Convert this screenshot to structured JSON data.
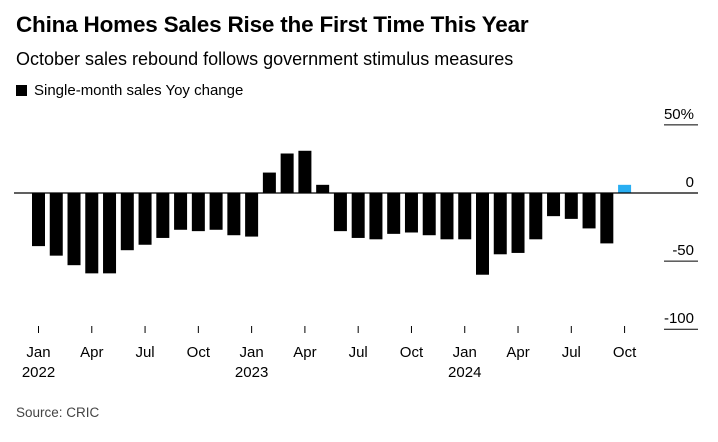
{
  "title": "China Homes Sales Rise the First Time This Year",
  "subtitle": "October sales rebound follows government stimulus measures",
  "legend_label": "Single-month sales Yoy change",
  "source": "Source: CRIC",
  "colors": {
    "bar": "#000000",
    "highlight": "#29aef2",
    "axis": "#000000",
    "tick_text": "#000000"
  },
  "chart_data": {
    "type": "bar",
    "title": "China Homes Sales Rise the First Time This Year",
    "subtitle": "October sales rebound follows government stimulus measures",
    "ylim": [
      -100,
      50
    ],
    "yticks": [
      50,
      0,
      -50,
      -100
    ],
    "ytick_labels": [
      "50%",
      "0",
      "-50",
      "-100"
    ],
    "x_tick_labels": [
      {
        "index": 0,
        "label": "Jan",
        "year": "2022"
      },
      {
        "index": 3,
        "label": "Apr",
        "year": ""
      },
      {
        "index": 6,
        "label": "Jul",
        "year": ""
      },
      {
        "index": 9,
        "label": "Oct",
        "year": ""
      },
      {
        "index": 12,
        "label": "Jan",
        "year": "2023"
      },
      {
        "index": 15,
        "label": "Apr",
        "year": ""
      },
      {
        "index": 18,
        "label": "Jul",
        "year": ""
      },
      {
        "index": 21,
        "label": "Oct",
        "year": ""
      },
      {
        "index": 24,
        "label": "Jan",
        "year": "2024"
      },
      {
        "index": 27,
        "label": "Apr",
        "year": ""
      },
      {
        "index": 30,
        "label": "Jul",
        "year": ""
      },
      {
        "index": 33,
        "label": "Oct",
        "year": ""
      }
    ],
    "categories": [
      "2022-01",
      "2022-02",
      "2022-03",
      "2022-04",
      "2022-05",
      "2022-06",
      "2022-07",
      "2022-08",
      "2022-09",
      "2022-10",
      "2022-11",
      "2022-12",
      "2023-01",
      "2023-02",
      "2023-03",
      "2023-04",
      "2023-05",
      "2023-06",
      "2023-07",
      "2023-08",
      "2023-09",
      "2023-10",
      "2023-11",
      "2023-12",
      "2024-01",
      "2024-02",
      "2024-03",
      "2024-04",
      "2024-05",
      "2024-06",
      "2024-07",
      "2024-08",
      "2024-09",
      "2024-10"
    ],
    "values": [
      -39,
      -46,
      -53,
      -59,
      -59,
      -42,
      -38,
      -33,
      -27,
      -28,
      -27,
      -31,
      -32,
      15,
      29,
      31,
      6,
      -28,
      -33,
      -34,
      -30,
      -29,
      -31,
      -34,
      -34,
      -60,
      -45,
      -44,
      -34,
      -17,
      -19,
      -26,
      -37,
      6
    ],
    "highlight_index": 33,
    "legend": [
      {
        "name": "Single-month sales Yoy change",
        "color": "#000000"
      }
    ]
  }
}
